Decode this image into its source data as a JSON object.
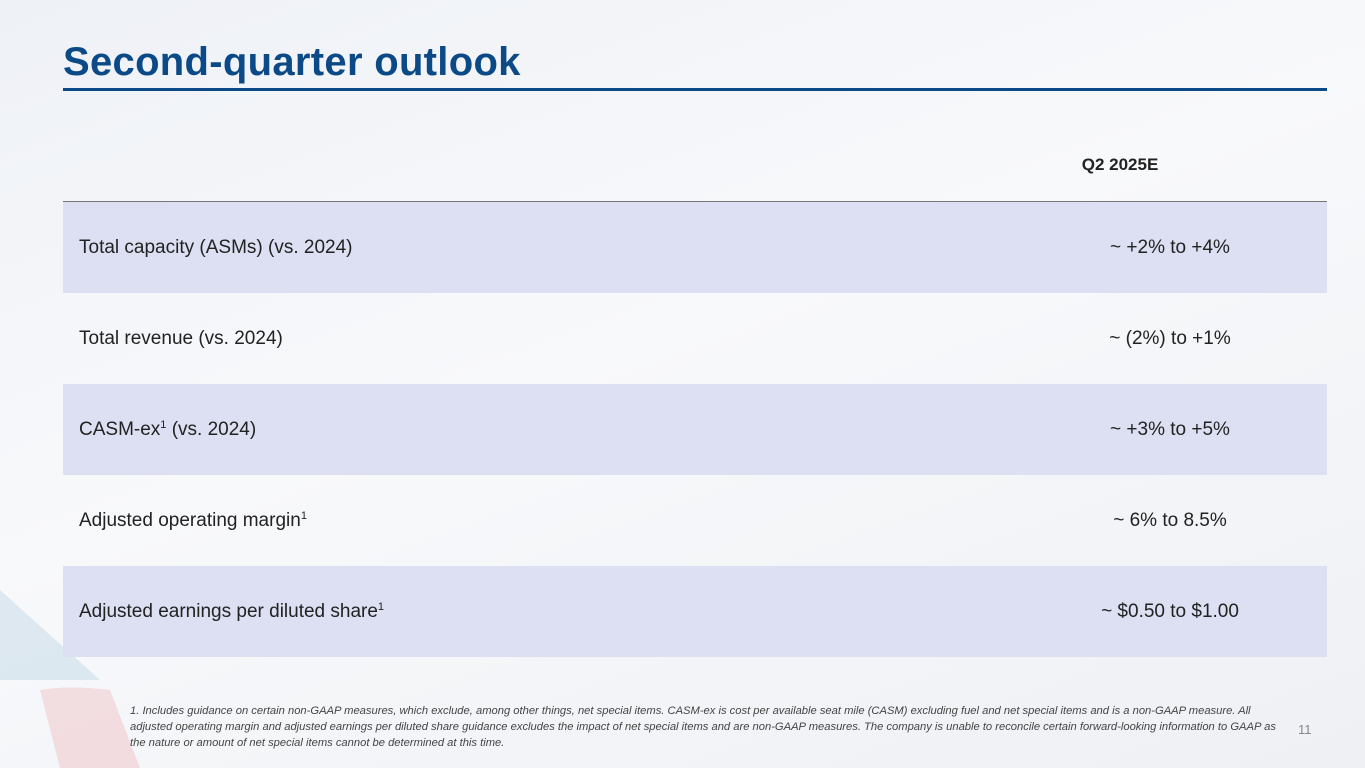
{
  "title": "Second-quarter outlook",
  "column_header": "Q2 2025E",
  "rows": [
    {
      "label": "Total capacity (ASMs)  (vs. 2024)",
      "sup": "",
      "label_after": "",
      "value": "~ +2% to +4%"
    },
    {
      "label": "Total revenue (vs. 2024)",
      "sup": "",
      "label_after": "",
      "value": "~ (2%) to +1%"
    },
    {
      "label": "CASM-ex",
      "sup": "1",
      "label_after": " (vs. 2024)",
      "value": "~ +3% to +5%"
    },
    {
      "label": "Adjusted operating margin",
      "sup": "1",
      "label_after": "",
      "value": "~ 6% to 8.5%"
    },
    {
      "label": "Adjusted earnings per diluted share",
      "sup": "1",
      "label_after": "",
      "value": "~ $0.50 to $1.00"
    }
  ],
  "footnote": "1. Includes guidance on certain non-GAAP measures, which exclude, among other things, net special items. CASM-ex is cost per available seat mile (CASM) excluding fuel and net special items and is a non-GAAP measure. All adjusted operating margin and adjusted earnings per diluted share guidance excludes the impact of net special items and are non-GAAP measures. The company is unable to reconcile certain forward-looking information to GAAP as the nature or amount of net special items cannot be determined at this time.",
  "page_number": "11",
  "colors": {
    "title": "#0c4a87",
    "row_shade": "#dce0f2"
  }
}
